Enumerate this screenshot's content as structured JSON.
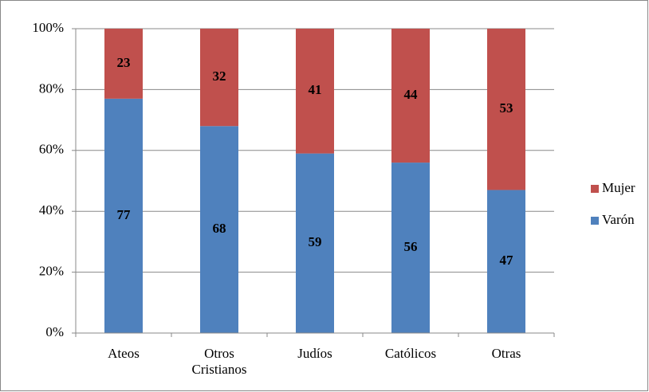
{
  "chart_data": {
    "type": "stacked_bar",
    "categories": [
      "Ateos",
      "Otros Cristianos",
      "Judíos",
      "Católicos",
      "Otras"
    ],
    "series": [
      {
        "name": "Varón",
        "color": "#4f81bd",
        "values": [
          77,
          68,
          59,
          56,
          47
        ]
      },
      {
        "name": "Mujer",
        "color": "#c0504d",
        "values": [
          23,
          32,
          41,
          44,
          53
        ]
      }
    ],
    "ylim": [
      0,
      100
    ],
    "yticks": [
      {
        "value": 0,
        "label": "0%"
      },
      {
        "value": 20,
        "label": "20%"
      },
      {
        "value": 40,
        "label": "40%"
      },
      {
        "value": 60,
        "label": "60%"
      },
      {
        "value": 80,
        "label": "80%"
      },
      {
        "value": 100,
        "label": "100%"
      }
    ],
    "grid": true,
    "legend": "right"
  }
}
